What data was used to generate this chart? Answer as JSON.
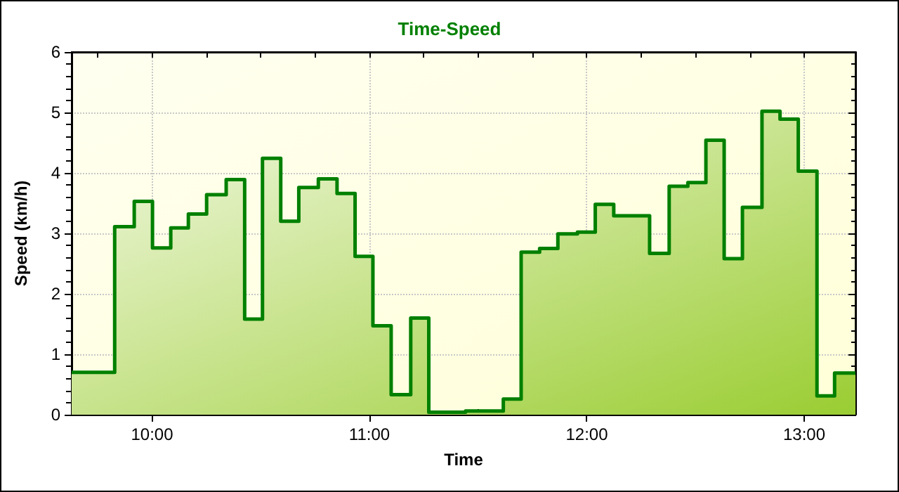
{
  "chart_data": {
    "type": "area",
    "title": "Time-Speed",
    "xlabel": "Time",
    "ylabel": "Speed (km/h)",
    "x": [
      9.63,
      9.828,
      9.828,
      9.918,
      9.918,
      10.002,
      10.002,
      10.086,
      10.086,
      10.167,
      10.167,
      10.251,
      10.251,
      10.341,
      10.341,
      10.426,
      10.426,
      10.508,
      10.508,
      10.592,
      10.592,
      10.675,
      10.675,
      10.765,
      10.765,
      10.851,
      10.851,
      10.934,
      10.934,
      11.016,
      11.016,
      11.1,
      11.1,
      11.19,
      11.19,
      11.273,
      11.273,
      11.442,
      11.442,
      11.616,
      11.616,
      11.698,
      11.698,
      11.783,
      11.783,
      11.867,
      11.867,
      11.957,
      11.957,
      12.039,
      12.039,
      12.124,
      12.124,
      12.289,
      12.289,
      12.379,
      12.379,
      12.465,
      12.465,
      12.548,
      12.548,
      12.632,
      12.632,
      12.716,
      12.716,
      12.806,
      12.806,
      12.889,
      12.889,
      12.973,
      12.973,
      13.059,
      13.059,
      13.14,
      13.14,
      13.236
    ],
    "series": [
      {
        "color": "#008000",
        "values": [
          0.7,
          0.7,
          3.11,
          3.11,
          3.53,
          3.53,
          2.76,
          2.76,
          3.09,
          3.09,
          3.32,
          3.32,
          3.64,
          3.64,
          3.89,
          3.89,
          1.58,
          1.58,
          4.24,
          4.24,
          3.2,
          3.2,
          3.76,
          3.76,
          3.9,
          3.9,
          3.66,
          3.66,
          2.62,
          2.62,
          1.47,
          1.47,
          0.33,
          0.33,
          1.6,
          1.6,
          0.04,
          0.04,
          0.06,
          0.06,
          0.26,
          0.26,
          2.69,
          2.69,
          2.75,
          2.75,
          2.99,
          2.99,
          3.02,
          3.02,
          3.48,
          3.48,
          3.29,
          3.29,
          2.67,
          2.67,
          3.78,
          3.78,
          3.84,
          3.84,
          4.54,
          4.54,
          2.58,
          2.58,
          3.43,
          3.43,
          5.02,
          5.02,
          4.89,
          4.89,
          4.03,
          4.03,
          0.31,
          0.31,
          0.69,
          0.69
        ]
      }
    ],
    "xlim": [
      9.63,
      13.236
    ],
    "xticks": [
      {
        "value": 10,
        "label": "10:00"
      },
      {
        "value": 11,
        "label": "11:00"
      },
      {
        "value": 12,
        "label": "12:00"
      },
      {
        "value": 13,
        "label": "13:00"
      }
    ],
    "ylim": [
      0,
      6
    ],
    "yticks": [
      0,
      1,
      2,
      3,
      4,
      5,
      6
    ],
    "grid": true,
    "marker": "none",
    "line_style": "solid"
  }
}
